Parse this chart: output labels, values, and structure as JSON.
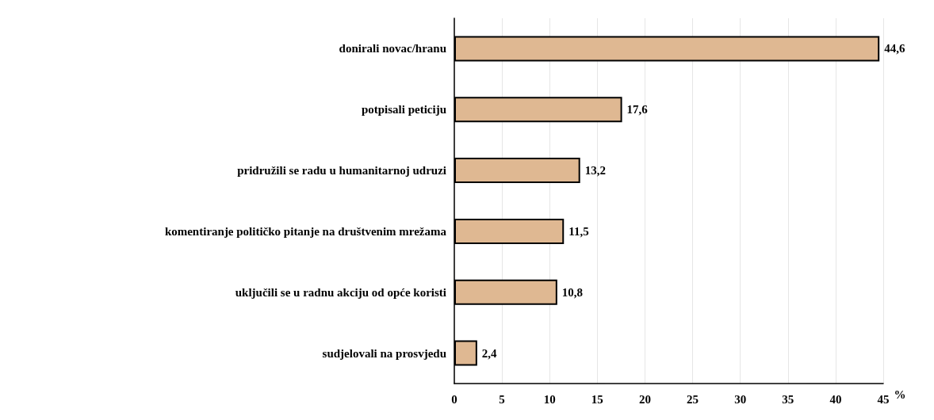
{
  "chart_data": {
    "type": "bar",
    "orientation": "horizontal",
    "xlabel": "%",
    "categories": [
      "donirali novac/hranu",
      "potpisali peticiju",
      "pridružili se radu u humanitarnoj udruzi",
      "komentiranje političko pitanje na društvenim mrežama",
      "uključili se u radnu akciju od opće koristi",
      "sudjelovali na prosvjedu"
    ],
    "values": [
      44.6,
      17.6,
      13.2,
      11.5,
      10.8,
      2.4
    ],
    "value_labels": [
      "44,6",
      "17,6",
      "13,2",
      "11,5",
      "10,8",
      "2,4"
    ],
    "color": "#dfb892",
    "xlim": [
      0,
      45
    ],
    "xticks": [
      0,
      5,
      10,
      15,
      20,
      25,
      30,
      35,
      40,
      45
    ],
    "grid": "x"
  }
}
